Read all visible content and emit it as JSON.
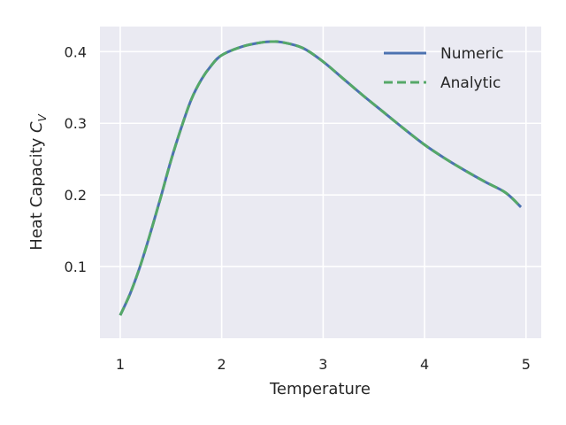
{
  "chart_data": {
    "type": "line",
    "title": "",
    "xlabel": "Temperature",
    "ylabel_main": "Heat Capacity ",
    "ylabel_symbol": "C",
    "ylabel_subscript": "V",
    "xlim": [
      0.8,
      5.15
    ],
    "ylim": [
      0.0,
      0.435
    ],
    "xticks": [
      1,
      2,
      3,
      4,
      5
    ],
    "xtick_labels": [
      "1",
      "2",
      "3",
      "4",
      "5"
    ],
    "yticks": [
      0.1,
      0.2,
      0.3,
      0.4
    ],
    "ytick_labels": [
      "0.1",
      "0.2",
      "0.3",
      "0.4"
    ],
    "grid": true,
    "legend_placement": "top-right",
    "x": [
      1.0,
      1.1,
      1.2,
      1.3,
      1.4,
      1.5,
      1.6,
      1.7,
      1.8,
      1.9,
      2.0,
      2.2,
      2.4,
      2.5,
      2.6,
      2.8,
      3.0,
      3.2,
      3.4,
      3.6,
      3.8,
      4.0,
      4.2,
      4.4,
      4.6,
      4.8,
      4.95
    ],
    "series": [
      {
        "name": "Numeric",
        "color": "#4c72b0",
        "style": "solid",
        "values": [
          0.032,
          0.063,
          0.102,
          0.148,
          0.197,
          0.248,
          0.293,
          0.333,
          0.361,
          0.381,
          0.395,
          0.407,
          0.413,
          0.414,
          0.413,
          0.405,
          0.386,
          0.362,
          0.338,
          0.315,
          0.292,
          0.27,
          0.251,
          0.234,
          0.218,
          0.203,
          0.183
        ]
      },
      {
        "name": "Analytic",
        "color": "#55a868",
        "style": "dashed",
        "values": [
          0.032,
          0.063,
          0.102,
          0.148,
          0.197,
          0.248,
          0.293,
          0.333,
          0.361,
          0.381,
          0.395,
          0.407,
          0.413,
          0.414,
          0.413,
          0.405,
          0.386,
          0.362,
          0.338,
          0.315,
          0.292,
          0.27,
          0.251,
          0.234,
          0.218,
          0.203,
          0.183
        ]
      }
    ]
  }
}
